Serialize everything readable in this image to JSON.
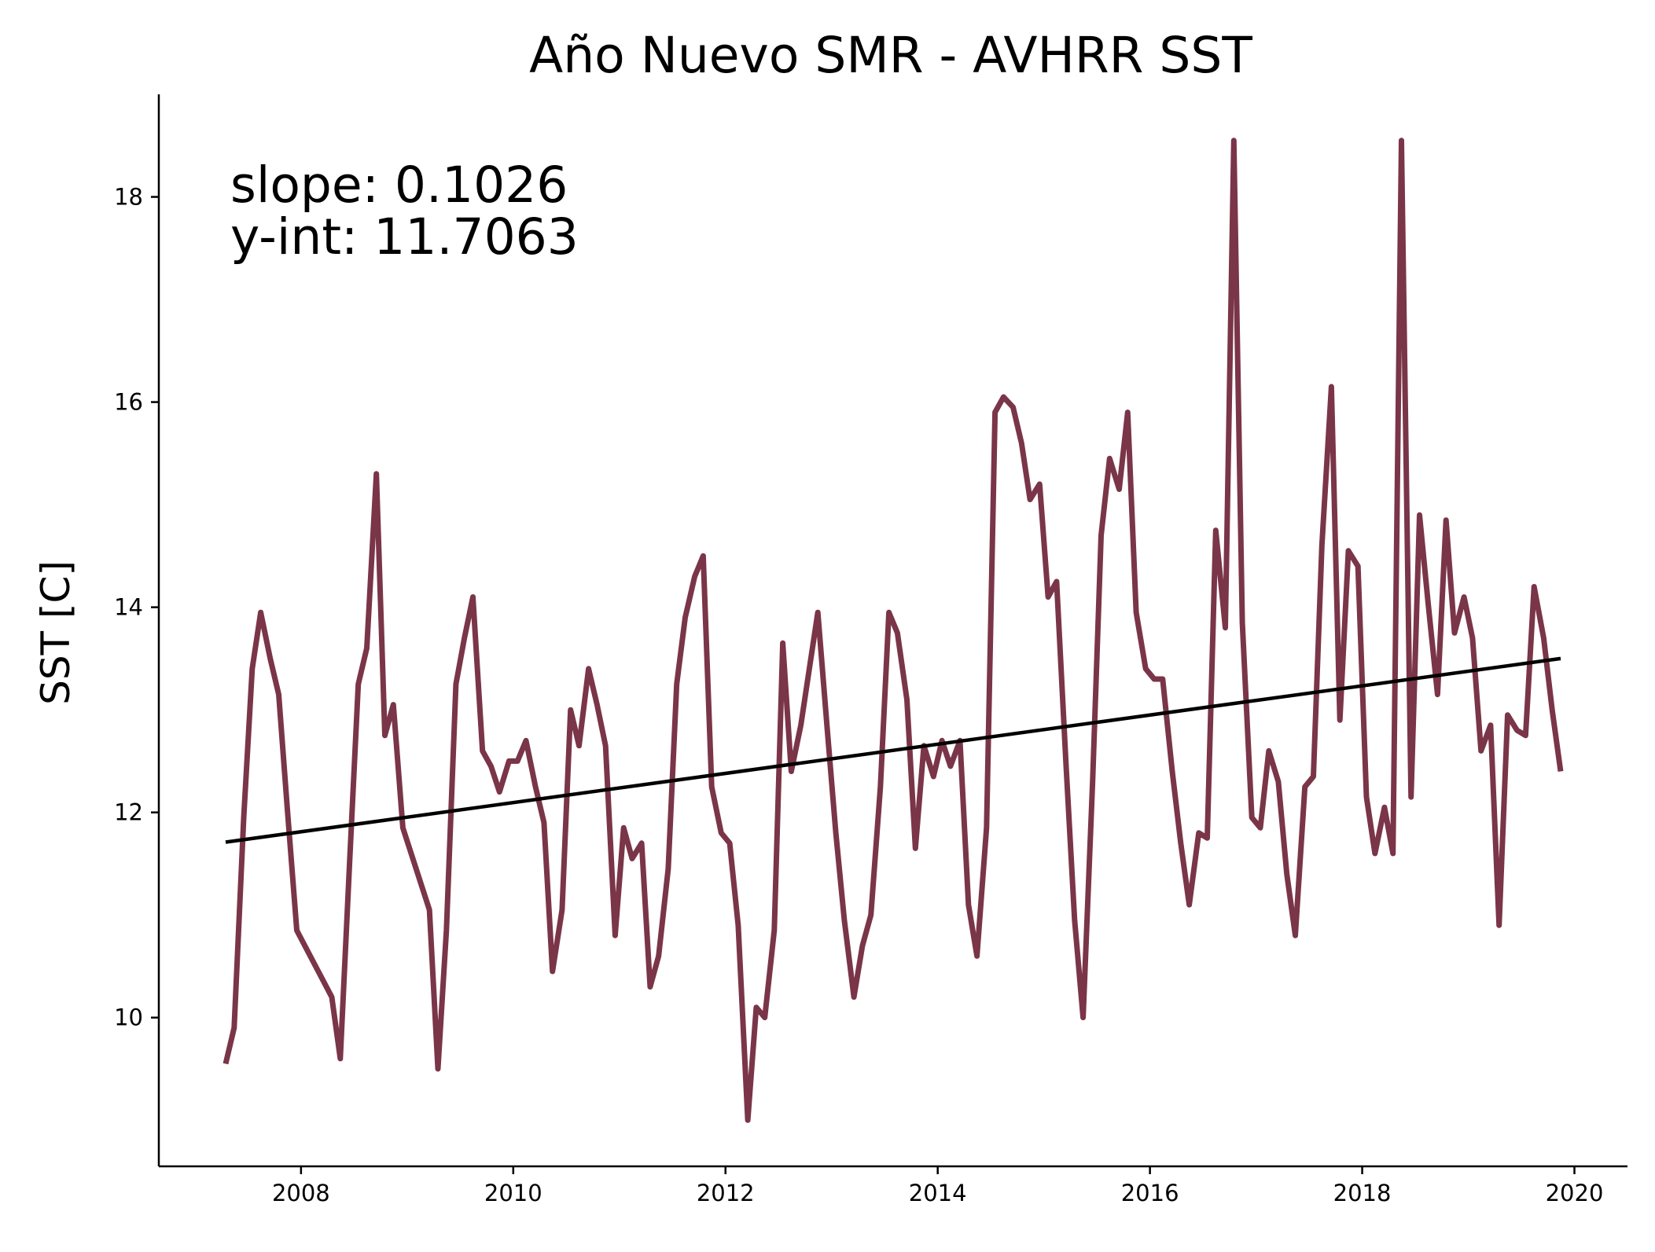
{
  "chart_data": {
    "type": "line",
    "title": "Año Nuevo SMR - AVHRR SST",
    "xlabel": "",
    "ylabel": "SST [C]",
    "xlim": [
      2006.66,
      2020.5
    ],
    "ylim": [
      8.55,
      19.0
    ],
    "x_ticks": [
      2008,
      2010,
      2012,
      2014,
      2016,
      2018,
      2020
    ],
    "y_ticks": [
      10,
      12,
      14,
      16,
      18
    ],
    "grid": false,
    "annotations": [
      "slope: 0.1026",
      "y-int: 11.7063"
    ],
    "colors": {
      "sst": "#7a3548",
      "trend": "#000000"
    },
    "series": [
      {
        "role": "sst",
        "x": [
          2007.29,
          2007.37,
          2007.46,
          2007.54,
          2007.62,
          2007.71,
          2007.79,
          2007.87,
          2007.96,
          2008.29,
          2008.37,
          2008.46,
          2008.54,
          2008.62,
          2008.71,
          2008.79,
          2008.87,
          2008.96,
          2009.21,
          2009.29,
          2009.37,
          2009.46,
          2009.54,
          2009.62,
          2009.71,
          2009.79,
          2009.87,
          2009.96,
          2010.04,
          2010.12,
          2010.21,
          2010.29,
          2010.37,
          2010.46,
          2010.54,
          2010.62,
          2010.71,
          2010.79,
          2010.87,
          2010.96,
          2011.04,
          2011.12,
          2011.21,
          2011.29,
          2011.37,
          2011.46,
          2011.54,
          2011.62,
          2011.71,
          2011.79,
          2011.87,
          2011.96,
          2012.04,
          2012.12,
          2012.21,
          2012.29,
          2012.37,
          2012.46,
          2012.54,
          2012.62,
          2012.71,
          2012.79,
          2012.87,
          2012.96,
          2013.04,
          2013.12,
          2013.21,
          2013.29,
          2013.37,
          2013.46,
          2013.54,
          2013.62,
          2013.71,
          2013.79,
          2013.87,
          2013.96,
          2014.04,
          2014.12,
          2014.21,
          2014.29,
          2014.37,
          2014.46,
          2014.54,
          2014.62,
          2014.71,
          2014.79,
          2014.87,
          2014.96,
          2015.04,
          2015.12,
          2015.21,
          2015.29,
          2015.37,
          2015.46,
          2015.54,
          2015.62,
          2015.71,
          2015.79,
          2015.87,
          2015.96,
          2016.04,
          2016.12,
          2016.21,
          2016.29,
          2016.37,
          2016.46,
          2016.54,
          2016.62,
          2016.71,
          2016.79,
          2016.87,
          2016.96,
          2017.04,
          2017.12,
          2017.21,
          2017.29,
          2017.37,
          2017.46,
          2017.54,
          2017.62,
          2017.71,
          2017.79,
          2017.87,
          2017.96,
          2018.04,
          2018.12,
          2018.21,
          2018.29,
          2018.37,
          2018.46,
          2018.54,
          2018.62,
          2018.71,
          2018.79,
          2018.87,
          2018.96,
          2019.04,
          2019.12,
          2019.21,
          2019.29,
          2019.37,
          2019.46,
          2019.54,
          2019.62,
          2019.71,
          2019.79,
          2019.87
        ],
        "y": [
          9.55,
          9.9,
          11.95,
          13.4,
          13.95,
          13.5,
          13.15,
          12.05,
          10.85,
          10.2,
          9.6,
          11.55,
          13.25,
          13.6,
          15.3,
          12.75,
          13.05,
          11.85,
          11.05,
          9.5,
          10.85,
          13.25,
          13.7,
          14.1,
          12.6,
          12.45,
          12.2,
          12.5,
          12.5,
          12.7,
          12.25,
          11.9,
          10.45,
          11.05,
          13.0,
          12.65,
          13.4,
          13.05,
          12.65,
          10.8,
          11.85,
          11.55,
          11.7,
          10.3,
          10.6,
          11.45,
          13.25,
          13.9,
          14.3,
          14.5,
          12.25,
          11.8,
          11.7,
          10.9,
          9.0,
          10.1,
          10.0,
          10.85,
          13.65,
          12.4,
          12.85,
          13.4,
          13.95,
          12.8,
          11.8,
          10.95,
          10.2,
          10.7,
          11.0,
          12.25,
          13.95,
          13.75,
          13.1,
          11.65,
          12.65,
          12.35,
          12.7,
          12.45,
          12.7,
          11.1,
          10.6,
          11.85,
          15.9,
          16.05,
          15.95,
          15.6,
          15.05,
          15.2,
          14.1,
          14.25,
          12.45,
          10.95,
          10.0,
          12.3,
          14.7,
          15.45,
          15.15,
          15.9,
          13.95,
          13.4,
          13.3,
          13.3,
          12.4,
          11.7,
          11.1,
          11.8,
          11.75,
          14.75,
          13.8,
          18.55,
          13.85,
          11.95,
          11.85,
          12.6,
          12.3,
          11.4,
          10.8,
          12.25,
          12.35,
          14.6,
          16.15,
          12.9,
          14.55,
          14.4,
          12.15,
          11.6,
          12.05,
          11.6,
          18.55,
          12.15,
          14.9,
          14.05,
          13.15,
          14.85,
          13.75,
          14.1,
          13.7,
          12.6,
          12.85,
          10.9,
          12.95,
          12.8,
          12.75,
          14.2,
          13.7,
          13.0,
          12.4
        ]
      },
      {
        "role": "trend",
        "x": [
          2007.29,
          2019.87
        ],
        "y": [
          11.71,
          13.5
        ]
      }
    ]
  }
}
